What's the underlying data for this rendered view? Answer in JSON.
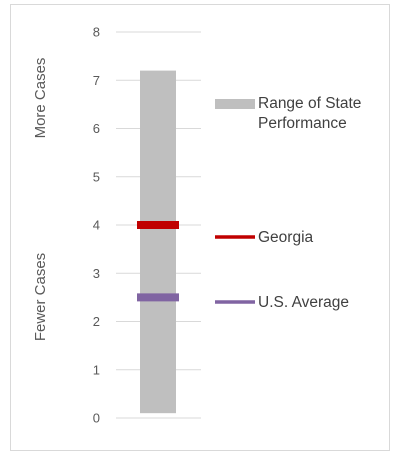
{
  "chart_data": {
    "type": "bar",
    "title": "",
    "xlabel": "",
    "ylabel": "",
    "ylim": [
      0,
      8
    ],
    "y_ticks": [
      "0",
      "1",
      "2",
      "3",
      "4",
      "5",
      "6",
      "7",
      "8"
    ],
    "grid": true,
    "legend_position": "right",
    "side_labels": {
      "top": "More Cases",
      "bottom": "Fewer Cases"
    },
    "range": {
      "name": "Range of State Performance",
      "min": 0.1,
      "max": 7.2,
      "color": "#bfbfbf"
    },
    "markers": [
      {
        "name": "Georgia",
        "value": 4.0,
        "color": "#c00000"
      },
      {
        "name": "U.S. Average",
        "value": 2.5,
        "color": "#8064a2"
      }
    ],
    "legend": [
      {
        "name": "Range of State Performance",
        "lines": [
          "Range of State",
          "Performance"
        ],
        "color": "#bfbfbf",
        "kind": "bar"
      },
      {
        "name": "Georgia",
        "lines": [
          "Georgia"
        ],
        "color": "#c00000",
        "kind": "line"
      },
      {
        "name": "U.S. Average",
        "lines": [
          "U.S. Average"
        ],
        "color": "#8064a2",
        "kind": "line"
      }
    ]
  }
}
